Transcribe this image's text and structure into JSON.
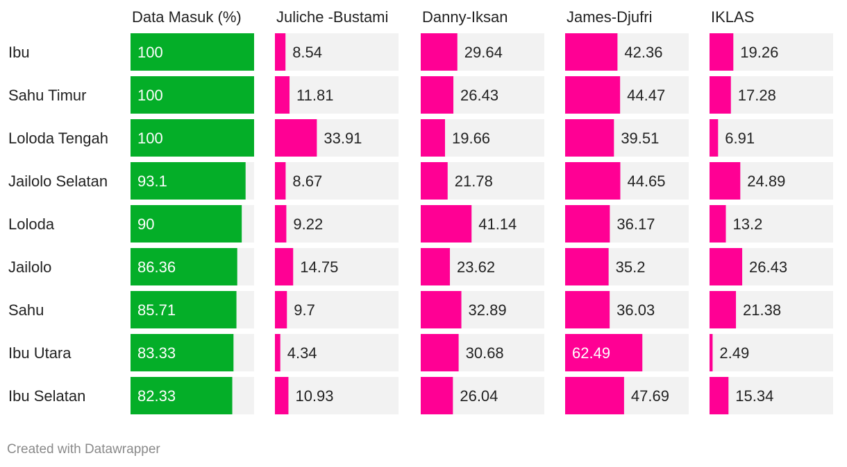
{
  "footer": "Created with Datawrapper",
  "colors": {
    "track": "#f2f2f2",
    "data_masuk": "#04ae28",
    "candidates": "#ff0094",
    "text_dark": "#222222",
    "text_light": "#ffffff"
  },
  "chart_data": {
    "type": "bar",
    "orientation": "horizontal",
    "layout": "small-multiples",
    "xlim": [
      0,
      100
    ],
    "categories": [
      "Ibu",
      "Sahu Timur",
      "Loloda Tengah",
      "Jailolo Selatan",
      "Loloda",
      "Jailolo",
      "Sahu",
      "Ibu Utara",
      "Ibu Selatan"
    ],
    "series": [
      {
        "name": "Data Masuk (%)",
        "values": [
          100,
          100,
          100,
          93.1,
          90,
          86.36,
          85.71,
          83.33,
          82.33
        ]
      },
      {
        "name": "Juliche -Bustami",
        "values": [
          8.54,
          11.81,
          33.91,
          8.67,
          9.22,
          14.75,
          9.7,
          4.34,
          10.93
        ]
      },
      {
        "name": "Danny-Iksan",
        "values": [
          29.64,
          26.43,
          19.66,
          21.78,
          41.14,
          23.62,
          32.89,
          30.68,
          26.04
        ]
      },
      {
        "name": "James-Djufri",
        "values": [
          42.36,
          44.47,
          39.51,
          44.65,
          36.17,
          35.2,
          36.03,
          62.49,
          47.69
        ]
      },
      {
        "name": "IKLAS",
        "values": [
          19.26,
          17.28,
          6.91,
          24.89,
          13.2,
          26.43,
          21.38,
          2.49,
          15.34
        ]
      }
    ]
  }
}
